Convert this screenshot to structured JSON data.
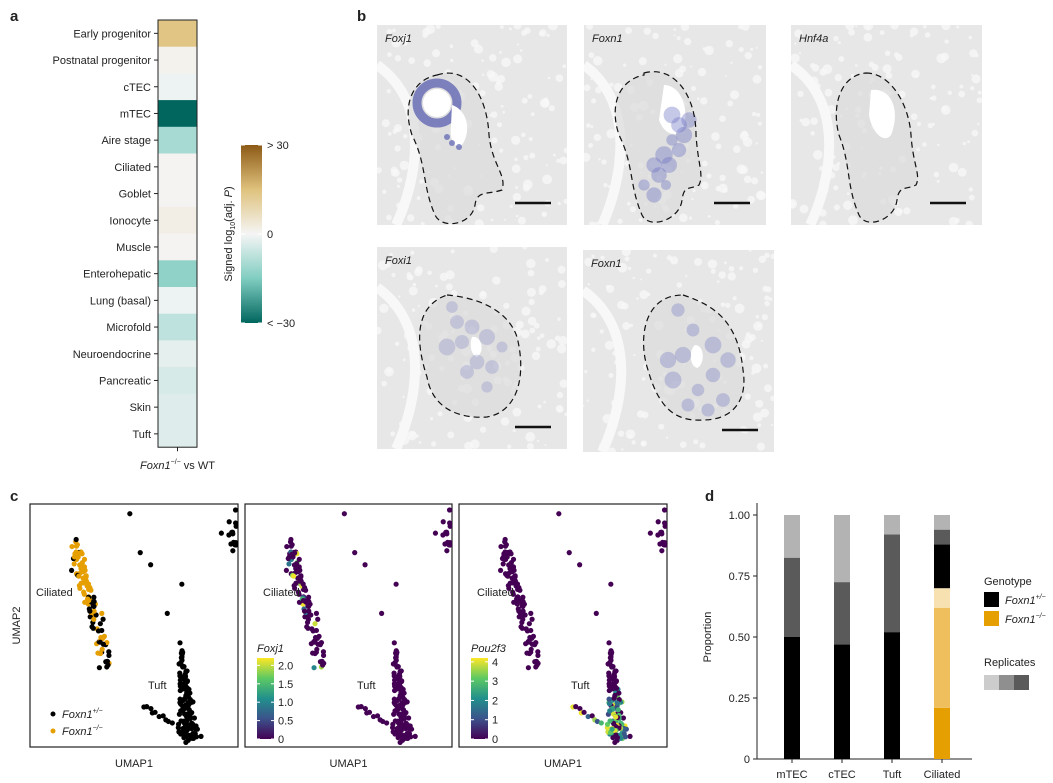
{
  "panels": {
    "a": {
      "letter": "a"
    },
    "b": {
      "letter": "b"
    },
    "c": {
      "letter": "c"
    },
    "d": {
      "letter": "d"
    }
  },
  "chart_data": [
    {
      "id": "a",
      "type": "heatmap",
      "title": "",
      "rows": [
        "Early progenitor",
        "Postnatal progenitor",
        "cTEC",
        "mTEC",
        "Aire stage",
        "Ciliated",
        "Goblet",
        "Ionocyte",
        "Muscle",
        "Enterohepatic",
        "Lung (basal)",
        "Microfold",
        "Neuroendocrine",
        "Pancreatic",
        "Skin",
        "Tuft"
      ],
      "columns": [
        "Foxn1−/− vs WT"
      ],
      "column_label": {
        "gene": "Foxn1",
        "superscript": "−/−",
        "suffix": " vs WT"
      },
      "values": [
        14,
        1,
        -1,
        -30,
        -10,
        0.5,
        0.5,
        2,
        0.5,
        -13,
        -1,
        -7,
        -2,
        -4,
        -3,
        -3
      ],
      "colorbar": {
        "label": "Signed log10(adj. P)",
        "label_parts": {
          "pre": "Signed log",
          "sub": "10",
          "mid": "(adj. ",
          "italic": "P",
          "post": ")"
        },
        "range": [
          -30,
          30
        ],
        "ticks": [
          {
            "value": 30,
            "label": "> 30"
          },
          {
            "value": 0,
            "label": "0"
          },
          {
            "value": -30,
            "label": "< −30"
          }
        ],
        "colors": {
          "high": "#8c5a16",
          "mid_high": "#dfc27d",
          "zero": "#f5f5f5",
          "mid_low": "#80cdc1",
          "low": "#01665e"
        }
      }
    },
    {
      "id": "c",
      "type": "scatter",
      "subplots": [
        {
          "name": "genotype",
          "xlabel": "UMAP1",
          "ylabel": "UMAP2",
          "legend": [
            {
              "label": "Foxn1",
              "sup": "+/−",
              "color": "#000000"
            },
            {
              "label": "Foxn1",
              "sup": "−/−",
              "color": "#e69f00"
            }
          ],
          "annotations": [
            "Ciliated",
            "Tuft"
          ]
        },
        {
          "name": "Foxj1",
          "xlabel": "UMAP1",
          "colorbar_title": "Foxj1",
          "colorbar_ticks": [
            "2.0",
            "1.5",
            "1.0",
            "0.5",
            "0"
          ],
          "range": [
            0,
            2.2
          ],
          "annotations": [
            "Ciliated",
            "Tuft"
          ]
        },
        {
          "name": "Pou2f3",
          "xlabel": "UMAP1",
          "colorbar_title": "Pou2f3",
          "colorbar_ticks": [
            "4",
            "3",
            "2",
            "1",
            "0"
          ],
          "range": [
            0,
            4.2
          ],
          "annotations": [
            "Ciliated",
            "Tuft"
          ]
        }
      ]
    },
    {
      "id": "d",
      "type": "bar",
      "stacked": true,
      "categories": [
        "mTEC",
        "cTEC",
        "Tuft",
        "Ciliated"
      ],
      "ylabel": "Proportion",
      "xlabel": "",
      "ylim": [
        0,
        1
      ],
      "yticks": [
        "0",
        "0.25",
        "0.50",
        "0.75",
        "1.00"
      ],
      "segments": [
        [
          {
            "genotype": "Foxn1+/-",
            "replicate": 3,
            "from": 0,
            "to": 0.5
          },
          {
            "genotype": "Foxn1+/-",
            "replicate": 2,
            "from": 0.5,
            "to": 0.825
          },
          {
            "genotype": "Foxn1+/-",
            "replicate": 1,
            "from": 0.825,
            "to": 1.0
          }
        ],
        [
          {
            "genotype": "Foxn1+/-",
            "replicate": 3,
            "from": 0,
            "to": 0.47
          },
          {
            "genotype": "Foxn1+/-",
            "replicate": 2,
            "from": 0.47,
            "to": 0.725
          },
          {
            "genotype": "Foxn1+/-",
            "replicate": 1,
            "from": 0.725,
            "to": 1.0
          }
        ],
        [
          {
            "genotype": "Foxn1+/-",
            "replicate": 3,
            "from": 0,
            "to": 0.52
          },
          {
            "genotype": "Foxn1+/-",
            "replicate": 2,
            "from": 0.52,
            "to": 0.92
          },
          {
            "genotype": "Foxn1+/-",
            "replicate": 1,
            "from": 0.92,
            "to": 1.0
          }
        ],
        [
          {
            "genotype": "Foxn1-/-",
            "replicate": 3,
            "from": 0,
            "to": 0.21
          },
          {
            "genotype": "Foxn1-/-",
            "replicate": 2,
            "from": 0.21,
            "to": 0.62
          },
          {
            "genotype": "Foxn1-/-",
            "replicate": 1,
            "from": 0.62,
            "to": 0.7
          },
          {
            "genotype": "Foxn1+/-",
            "replicate": 3,
            "from": 0.7,
            "to": 0.88
          },
          {
            "genotype": "Foxn1+/-",
            "replicate": 2,
            "from": 0.88,
            "to": 0.94
          },
          {
            "genotype": "Foxn1+/-",
            "replicate": 1,
            "from": 0.94,
            "to": 1.0
          }
        ]
      ],
      "colors": {
        "Foxn1+/-": [
          "#b3b3b3",
          "#5a5a5a",
          "#000000"
        ],
        "Foxn1-/-": [
          "#f7e1b0",
          "#eebf5c",
          "#e69f00"
        ]
      },
      "legend": {
        "genotype_title": "Genotype",
        "genotype_items": [
          {
            "label": "Foxn1",
            "sup": "+/−",
            "color": "#000000"
          },
          {
            "label": "Foxn1",
            "sup": "−/−",
            "color": "#e69f00"
          }
        ],
        "replicates_title": "Replicates",
        "replicate_swatches": [
          "#cccccc",
          "#8f8f8f",
          "#5a5a5a"
        ]
      }
    }
  ],
  "ish_images": [
    {
      "gene": "Foxj1",
      "row": 1
    },
    {
      "gene": "Foxn1",
      "row": 1
    },
    {
      "gene": "Hnf4a",
      "row": 1
    },
    {
      "gene": "Foxi1",
      "row": 2
    },
    {
      "gene": "Foxn1",
      "row": 2
    }
  ]
}
